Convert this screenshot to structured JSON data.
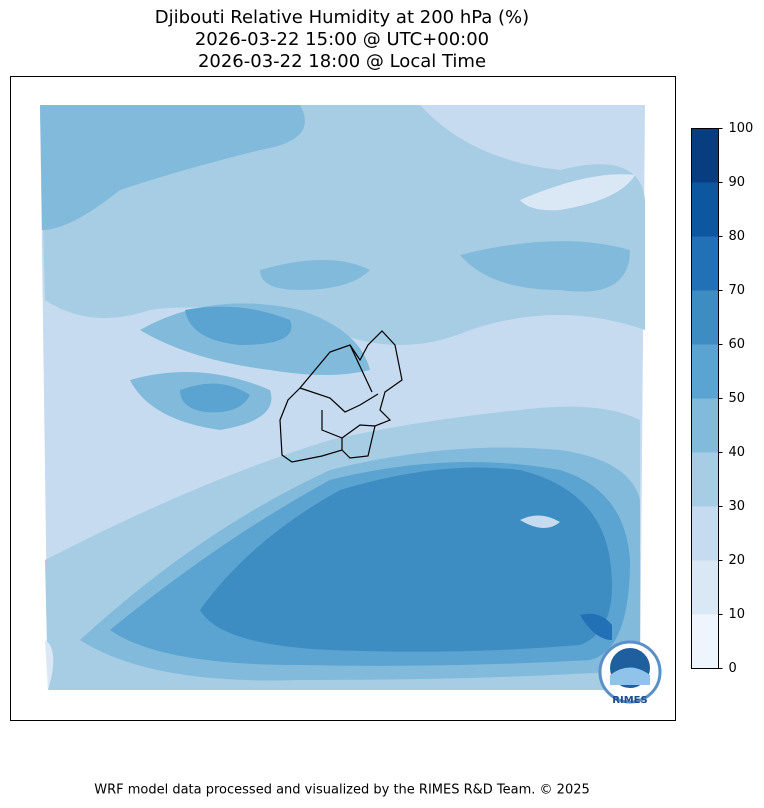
{
  "title": "Djibouti Relative Humidity at 200 hPa (%)",
  "subtitle_utc": "2026-03-22 15:00 @ UTC+00:00",
  "subtitle_local": "2026-03-22 18:00 @ Local Time",
  "colorbar": {
    "ticks": [
      0,
      10,
      20,
      30,
      40,
      50,
      60,
      70,
      80,
      90,
      100
    ],
    "colors": [
      "#eef5fc",
      "#dae8f6",
      "#c6dbef",
      "#a6cde4",
      "#82badb",
      "#5ba3d0",
      "#3d8dc3",
      "#2270b5",
      "#0d56a0",
      "#083d7f"
    ]
  },
  "logo": "RIMES",
  "footer": "WRF model data processed and visualized by the RIMES R&D Team. © 2025"
}
